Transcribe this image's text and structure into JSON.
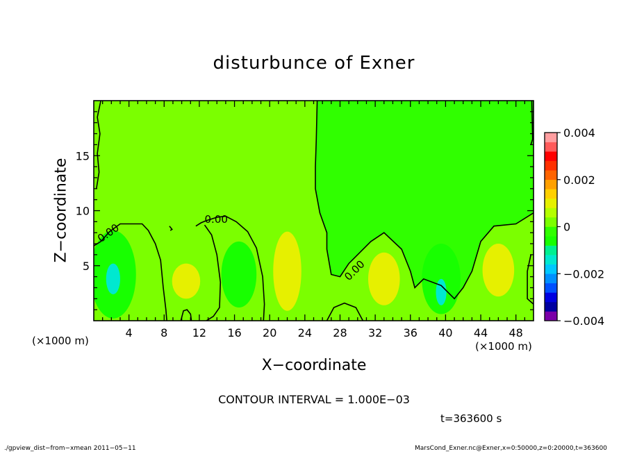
{
  "chart_data": {
    "type": "heatmap",
    "title": "disturbunce of Exner",
    "xlabel": "X−coordinate",
    "ylabel": "Z−coordinate",
    "x_unit_label": "(×1000 m)",
    "x_unit_label_right": "(×1000 m)",
    "xlim": [
      0,
      50
    ],
    "ylim": [
      0,
      20
    ],
    "x_ticks": [
      4,
      8,
      12,
      16,
      20,
      24,
      28,
      32,
      36,
      40,
      44,
      48
    ],
    "y_ticks": [
      5,
      10,
      15
    ],
    "contour_label": "0.00",
    "contour_interval_text": "CONTOUR INTERVAL = 1.000E−03",
    "time_text": "t=363600 s",
    "colorbar": {
      "ticks": [
        {
          "value": 0.004,
          "label": "0.004"
        },
        {
          "value": 0.002,
          "label": "0.002"
        },
        {
          "value": 0,
          "label": "0"
        },
        {
          "value": -0.002,
          "label": "−0.002"
        },
        {
          "value": -0.004,
          "label": "−0.004"
        }
      ],
      "range": [
        -0.004,
        0.004
      ],
      "colors": [
        "#7b00a8",
        "#0000a0",
        "#0000e0",
        "#0050ff",
        "#0090ff",
        "#00c8ff",
        "#00e8d0",
        "#00f090",
        "#18ff00",
        "#30ff00",
        "#7bff00",
        "#b4ff00",
        "#e6f000",
        "#ffd000",
        "#ffa000",
        "#ff6400",
        "#ff3000",
        "#ff0000",
        "#ff5a5a",
        "#ff9ea0"
      ]
    },
    "regions": {
      "background": 0.0003,
      "upper_right": -0.0003,
      "positive_blobs": [
        {
          "x": 10.5,
          "z": 3.6,
          "level": 0.0008
        },
        {
          "x": 22.0,
          "z": 4.5,
          "level": 0.0008
        },
        {
          "x": 33.0,
          "z": 3.8,
          "level": 0.0008
        },
        {
          "x": 46.0,
          "z": 4.6,
          "level": 0.0008
        }
      ],
      "negative_blobs": [
        {
          "x": 2.2,
          "z": 4.2,
          "level": -0.0008
        },
        {
          "x": 2.2,
          "z": 3.8,
          "level": -0.0015
        },
        {
          "x": 16.5,
          "z": 4.2,
          "level": -0.0008
        },
        {
          "x": 39.5,
          "z": 3.8,
          "level": -0.0008
        },
        {
          "x": 39.5,
          "z": 2.6,
          "level": -0.0015
        }
      ]
    }
  },
  "footer": {
    "left": "./gpview_dist−from−xmean  2011−05−11",
    "right": "MarsCond_Exner.nc@Exner,x=0:50000,z=0:20000,t=363600"
  }
}
